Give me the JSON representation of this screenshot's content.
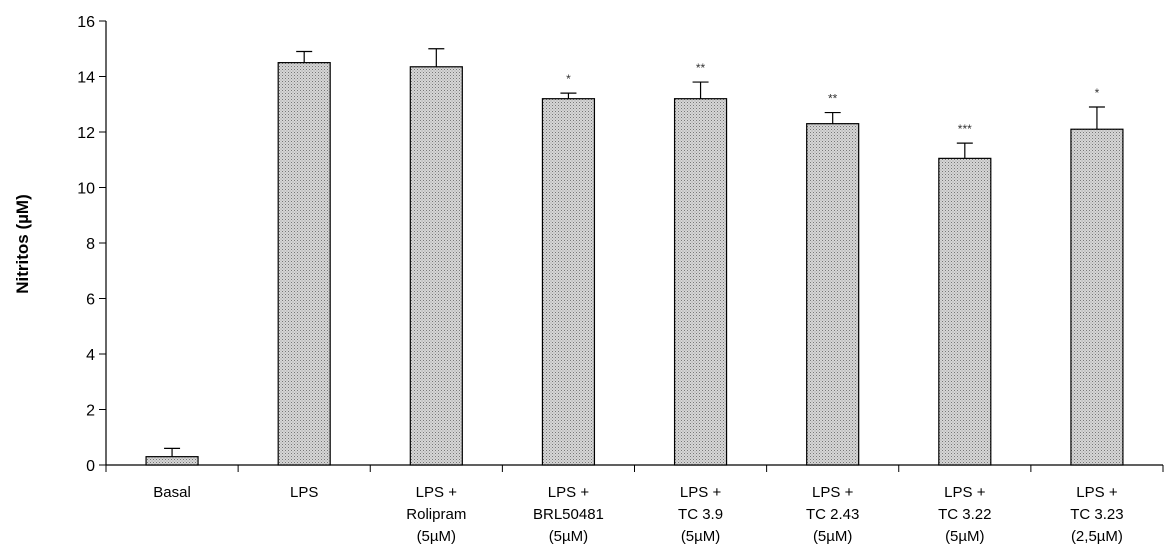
{
  "chart_data": {
    "type": "bar",
    "title": "",
    "xlabel": "",
    "ylabel": "Nitritos (µM)",
    "ylim": [
      0,
      16
    ],
    "yticks": [
      "0",
      "2",
      "4",
      "6",
      "8",
      "10",
      "12",
      "14",
      "16"
    ],
    "grid": false,
    "legend": "none",
    "bar_color": "#c8c8c8",
    "categories": [
      [
        "Basal"
      ],
      [
        "LPS"
      ],
      [
        "LPS +",
        "Rolipram",
        "(5µM)"
      ],
      [
        "LPS +",
        "BRL50481",
        "(5µM)"
      ],
      [
        "LPS +",
        "TC 3.9",
        "(5µM)"
      ],
      [
        "LPS +",
        "TC 2.43",
        "(5µM)"
      ],
      [
        "LPS +",
        "TC 3.22",
        "(5µM)"
      ],
      [
        "LPS +",
        "TC 3.23",
        "(2,5µM)"
      ]
    ],
    "values": [
      0.3,
      14.5,
      14.35,
      13.2,
      13.2,
      12.3,
      11.05,
      12.1
    ],
    "errors": [
      0.3,
      0.4,
      0.65,
      0.2,
      0.6,
      0.4,
      0.55,
      0.8
    ],
    "significance": [
      "",
      "",
      "",
      "*",
      "**",
      "**",
      "***",
      "*"
    ]
  }
}
